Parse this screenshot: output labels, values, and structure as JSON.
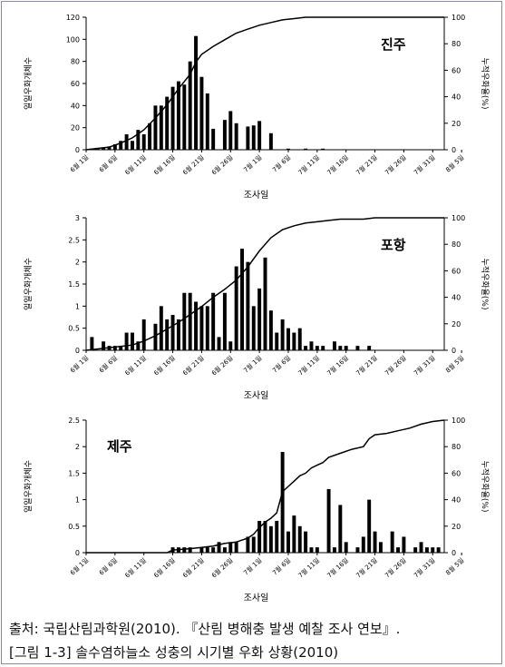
{
  "chart_data": [
    {
      "type": "bar",
      "region_label": "진주",
      "ylabel": "일일우화개체수",
      "y2label": "누적우화율(%)",
      "xlabel": "조사일",
      "ylim": [
        0,
        120
      ],
      "yticks": [
        0,
        20,
        40,
        60,
        80,
        100,
        120
      ],
      "y2lim": [
        0,
        100
      ],
      "y2ticks": [
        0,
        20,
        40,
        60,
        80,
        100
      ],
      "xlim": [
        0,
        62
      ],
      "xtick_labels": [
        "6월 1일",
        "6월 6일",
        "6월 11일",
        "6월 16일",
        "6월 21일",
        "6월 26일",
        "7월 1일",
        "7월 6일",
        "7월 11일",
        "7월 16일",
        "7월 21일",
        "7월 26일",
        "7월 31일",
        "8월 5일"
      ],
      "series": [
        {
          "x": [
            1,
            2,
            3,
            4,
            5,
            6,
            7,
            8,
            9,
            10,
            11,
            12,
            13,
            14,
            15,
            16,
            17,
            18,
            19,
            20,
            21,
            22,
            24,
            25,
            26,
            28,
            29,
            30,
            32,
            35,
            38,
            41
          ],
          "values": [
            1,
            1,
            2,
            3,
            5,
            8,
            14,
            8,
            18,
            14,
            24,
            40,
            40,
            48,
            57,
            62,
            59,
            80,
            103,
            66,
            51,
            19,
            27,
            35,
            24,
            21,
            22,
            26,
            15,
            1,
            1,
            1
          ]
        },
        {
          "x": [
            0,
            2,
            4,
            6,
            8,
            10,
            12,
            14,
            16,
            18,
            19,
            20,
            22,
            24,
            26,
            28,
            30,
            32,
            34,
            36,
            38,
            40,
            42,
            62
          ],
          "values": [
            0,
            1,
            2,
            5,
            9,
            15,
            24,
            34,
            46,
            57,
            66,
            72,
            78,
            83,
            88,
            91,
            94,
            96,
            98,
            99,
            100,
            100,
            100,
            100
          ]
        }
      ]
    },
    {
      "type": "bar",
      "region_label": "포항",
      "ylabel": "일일우화개체수",
      "y2label": "누적우화율(%)",
      "xlabel": "조사일",
      "ylim": [
        0,
        3.0
      ],
      "yticks": [
        0,
        0.5,
        1.0,
        1.5,
        2.0,
        2.5,
        3.0
      ],
      "ytick_labels": [
        "0",
        "0.5",
        "1",
        "1.5",
        "2",
        "2.5",
        "3"
      ],
      "y2lim": [
        0,
        100
      ],
      "y2ticks": [
        0,
        20,
        40,
        60,
        80,
        100
      ],
      "xlim": [
        0,
        62
      ],
      "xtick_labels": [
        "6월 1일",
        "6월 6일",
        "6월 11일",
        "6월 16일",
        "6월 21일",
        "6월 26일",
        "7월 1일",
        "7월 6일",
        "7월 11일",
        "7월 16일",
        "7월 21일",
        "7월 26일",
        "7월 31일",
        "8월 5일"
      ],
      "series": [
        {
          "x": [
            1,
            3,
            4,
            5,
            6,
            7,
            8,
            9,
            10,
            12,
            13,
            14,
            15,
            16,
            17,
            18,
            19,
            20,
            21,
            22,
            23,
            24,
            25,
            26,
            27,
            28,
            29,
            30,
            31,
            32,
            33,
            34,
            35,
            36,
            37,
            38,
            39,
            40,
            41,
            43,
            44,
            45,
            47,
            49
          ],
          "values": [
            0.3,
            0.2,
            0.1,
            0.1,
            0.1,
            0.4,
            0.4,
            0.2,
            0.7,
            0.6,
            1.0,
            0.7,
            0.8,
            0.7,
            1.3,
            1.3,
            1.1,
            1.0,
            1.0,
            1.3,
            0.3,
            1.3,
            0.2,
            1.9,
            2.3,
            2.0,
            1.0,
            1.4,
            2.1,
            0.9,
            0.4,
            0.7,
            0.5,
            0.4,
            0.5,
            0.1,
            0.2,
            0.1,
            0.1,
            0.2,
            0.1,
            0.1,
            0.1,
            0.1
          ]
        },
        {
          "x": [
            0,
            4,
            8,
            10,
            12,
            14,
            16,
            18,
            20,
            22,
            24,
            26,
            28,
            30,
            32,
            34,
            36,
            38,
            40,
            42,
            44,
            46,
            48,
            50,
            52,
            54,
            56,
            58,
            60,
            62
          ],
          "values": [
            0,
            2,
            4,
            7,
            11,
            16,
            21,
            27,
            33,
            40,
            46,
            53,
            63,
            75,
            85,
            91,
            94,
            96,
            97,
            98,
            99,
            99,
            99,
            100,
            100,
            100,
            100,
            100,
            100,
            100
          ]
        }
      ]
    },
    {
      "type": "bar",
      "region_label": "제주",
      "ylabel": "일일우화개체수",
      "y2label": "누적우화율(%)",
      "xlabel": "조사일",
      "ylim": [
        0,
        2.5
      ],
      "yticks": [
        0,
        0.5,
        1.0,
        1.5,
        2.0,
        2.5
      ],
      "ytick_labels": [
        "0",
        "0.5",
        "1",
        "1.5",
        "2",
        "2.5"
      ],
      "y2lim": [
        0,
        100
      ],
      "y2ticks": [
        0,
        20,
        40,
        60,
        80,
        100
      ],
      "xlim": [
        0,
        62
      ],
      "xtick_labels": [
        "6월 1일",
        "6월 6일",
        "6월 11일",
        "6월 16일",
        "6월 21일",
        "6월 26일",
        "7월 1일",
        "7월 6일",
        "7월 11일",
        "7월 16일",
        "7월 21일",
        "7월 26일",
        "7월 31일",
        "8월 5일"
      ],
      "series": [
        {
          "x": [
            15,
            16,
            17,
            18,
            20,
            21,
            22,
            23,
            24,
            25,
            26,
            28,
            29,
            30,
            31,
            32,
            33,
            34,
            35,
            36,
            37,
            38,
            39,
            40,
            42,
            43,
            44,
            45,
            47,
            48,
            49,
            50,
            51,
            53,
            54,
            55,
            57,
            58,
            59,
            60,
            61
          ],
          "values": [
            0.1,
            0.1,
            0.1,
            0.1,
            0.1,
            0.1,
            0.1,
            0.2,
            0.1,
            0.2,
            0.2,
            0.3,
            0.3,
            0.6,
            0.6,
            0.5,
            0.6,
            1.9,
            0.4,
            0.7,
            0.5,
            0.4,
            0.1,
            0.1,
            1.2,
            0.1,
            0.9,
            0.2,
            0.1,
            0.3,
            1.0,
            0.4,
            0.2,
            0.4,
            0.1,
            0.3,
            0.1,
            0.2,
            0.1,
            0.1,
            0.1
          ]
        },
        {
          "x": [
            0,
            14,
            15,
            18,
            20,
            22,
            24,
            26,
            28,
            29,
            30,
            31,
            32,
            33,
            34,
            35,
            36,
            37,
            38,
            39,
            40,
            41,
            42,
            44,
            46,
            48,
            49,
            50,
            52,
            54,
            56,
            58,
            60,
            62
          ],
          "values": [
            0,
            0,
            2,
            3,
            4,
            5,
            7,
            8,
            11,
            14,
            19,
            23,
            26,
            30,
            46,
            50,
            54,
            58,
            60,
            64,
            66,
            68,
            72,
            75,
            78,
            80,
            86,
            89,
            90,
            92,
            94,
            97,
            99,
            100
          ]
        }
      ]
    }
  ],
  "caption": {
    "source": "출처: 국립산림과학원(2010). 『산림 병해충 발생 예찰 조사 연보』.",
    "figure": "[그림 1-3] 솔수염하늘소 성충의 시기별 우화 상황(2010)"
  }
}
